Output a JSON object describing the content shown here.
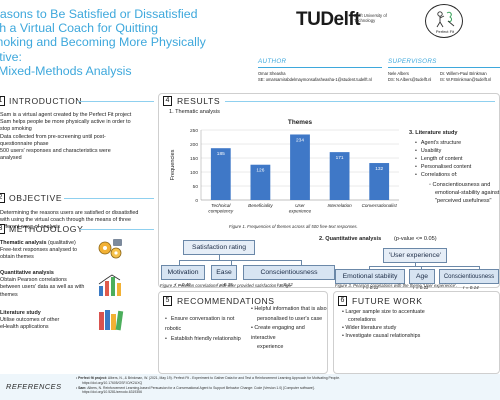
{
  "title": {
    "line1": "easons to Be Satisfied or Dissatisfied",
    "line2": "ith a Virtual Coach for Quitting",
    "line3": "moking and Becoming More Physically",
    "line4": "ctive:",
    "line5": "Mixed-Methods Analysis"
  },
  "logo": {
    "tud_name": "TUDelft",
    "tud_sub": "Delft University of Technology",
    "pf_name": "Perfect Fit"
  },
  "author": {
    "label": "AUTHOR",
    "name": "Omar Sheasha",
    "contact": "SE: omarsamirabdelmaymonsafasheasha-1@student.tudelft.nl"
  },
  "supervisors": {
    "label": "SUPERVISORS",
    "sup1_name": "Nele Albers",
    "sup1_contact": "DS: N.Albers@tudelft.nl",
    "sup2_name": "Dr. Willem-Paul Brinkman",
    "sup2_contact": "IS: W.P.Brinkman@tudelft.nl"
  },
  "intro": {
    "num": "1",
    "title": "INTRODUCTION",
    "lines": [
      "Sam is a virtual agent created by the Perfect Fit project",
      "Sam helps people be more physically active in order to",
      "stop smoking",
      "Data collected from pre-screening until post-",
      "questionnaire phase",
      "500 users' responses and characteristics were",
      "analysed"
    ]
  },
  "objective": {
    "num": "2",
    "title": "OBJECTIVE",
    "lines": [
      "Determining the reasons users are satisfied or dissatisfied",
      "with using the virtual coach through the means of three",
      "different ways of analysis"
    ]
  },
  "methodology": {
    "num": "3",
    "title": "METHODOLOGY",
    "items": [
      {
        "head": "Thematic analysis",
        "suffix": " (qualitative)",
        "lines": [
          "Free-text responses analysed to",
          "obtain themes"
        ]
      },
      {
        "head": "Quantitative analysis",
        "suffix": "",
        "lines": [
          "Obtain Pearson correlations",
          "between users' data as well as with",
          "themes"
        ]
      },
      {
        "head": "Literature study",
        "suffix": "",
        "lines": [
          "Utilise outcomes of other",
          "eHealth applications"
        ]
      }
    ]
  },
  "results": {
    "num": "4",
    "title": "RESULTS",
    "sub1": "1. Thematic analysis",
    "sub2": "2. Quantitative analysis",
    "sub2_note": "(p-value <= 0.05)",
    "fig1_caption": "Figure 1. Frequencies of themes across all 500 free-text responses.",
    "fig2_caption": "Figure 2. Pearson correlations with user provided satisfaction ratings.",
    "fig3_caption": "Figure 3. Pearson correlations with the theme 'User experience'.",
    "lit_title": "3. Literature study",
    "lit_items": [
      "Agent's structure",
      "Usability",
      "Length of content",
      "Personalised content",
      "Correlations of:"
    ],
    "lit_corr": "Conscientiousness and emotional-stability against \"perceived usefulness\"",
    "sat_root": "Satisfaction rating",
    "sat_children": [
      {
        "label": "Motivation",
        "r": "r = 0.45"
      },
      {
        "label": "Ease",
        "r": "r = 0.35"
      },
      {
        "label": "Conscientiousness",
        "r": "r = 0.12"
      }
    ],
    "ux_root": "'User experience'",
    "ux_children": [
      {
        "label": "Emotional stability",
        "r": "r = 0.11"
      },
      {
        "label": "Age",
        "r": "r = 0.11"
      },
      {
        "label": "Conscientiousness",
        "r": "r = 0.14"
      }
    ]
  },
  "recommendations": {
    "num": "5",
    "title": "RECOMMENDATIONS",
    "col1": [
      "Ensure conversation is not robotic",
      "Establish friendly relationship"
    ],
    "col2a": "Helpful information that is also",
    "col2b": "personalised to user's case",
    "col2c": "Create engaging and interactive",
    "col2d": "experience"
  },
  "future": {
    "num": "6",
    "title": "FUTURE WORK",
    "items": [
      "Larger sample size to accentuate",
      "correlations",
      "Wider literature study",
      "Investigate causal relationships"
    ]
  },
  "references": {
    "label": "REFERENCES",
    "ref1_head": "Perfect fit project:",
    "ref1_body": " Albers, N., & Brinkman, W. (2021, May 19). Perfect Fit - Experiment to Gather Data for and Test a Reinforcement Learning Approach for Motivating People.",
    "ref1_doi": "https://doi.org/10.17605/OSF.IO/K2UXQ",
    "ref2_head": "Sam:",
    "ref2_body": " Albers, N. Reinforcement Learning-based Persuasion for a Conversational Agent to Support Behavior Change: Code (Version 1.0) [Computer software].",
    "ref2_doi": "https://doi.org/10.5281/zenodo.6319356"
  },
  "chart_data": {
    "type": "bar",
    "title": "Themes",
    "ylabel": "Frequencies",
    "xlabel": "",
    "categories": [
      "Technical competency",
      "Beneficiality",
      "User experience",
      "Interrelation",
      "Conversationalist"
    ],
    "values": [
      185,
      126,
      234,
      171,
      132
    ],
    "ylim": [
      0,
      250
    ],
    "yticks": [
      0,
      50,
      100,
      150,
      200,
      250
    ],
    "color": "#3f78c7",
    "grid": true
  }
}
